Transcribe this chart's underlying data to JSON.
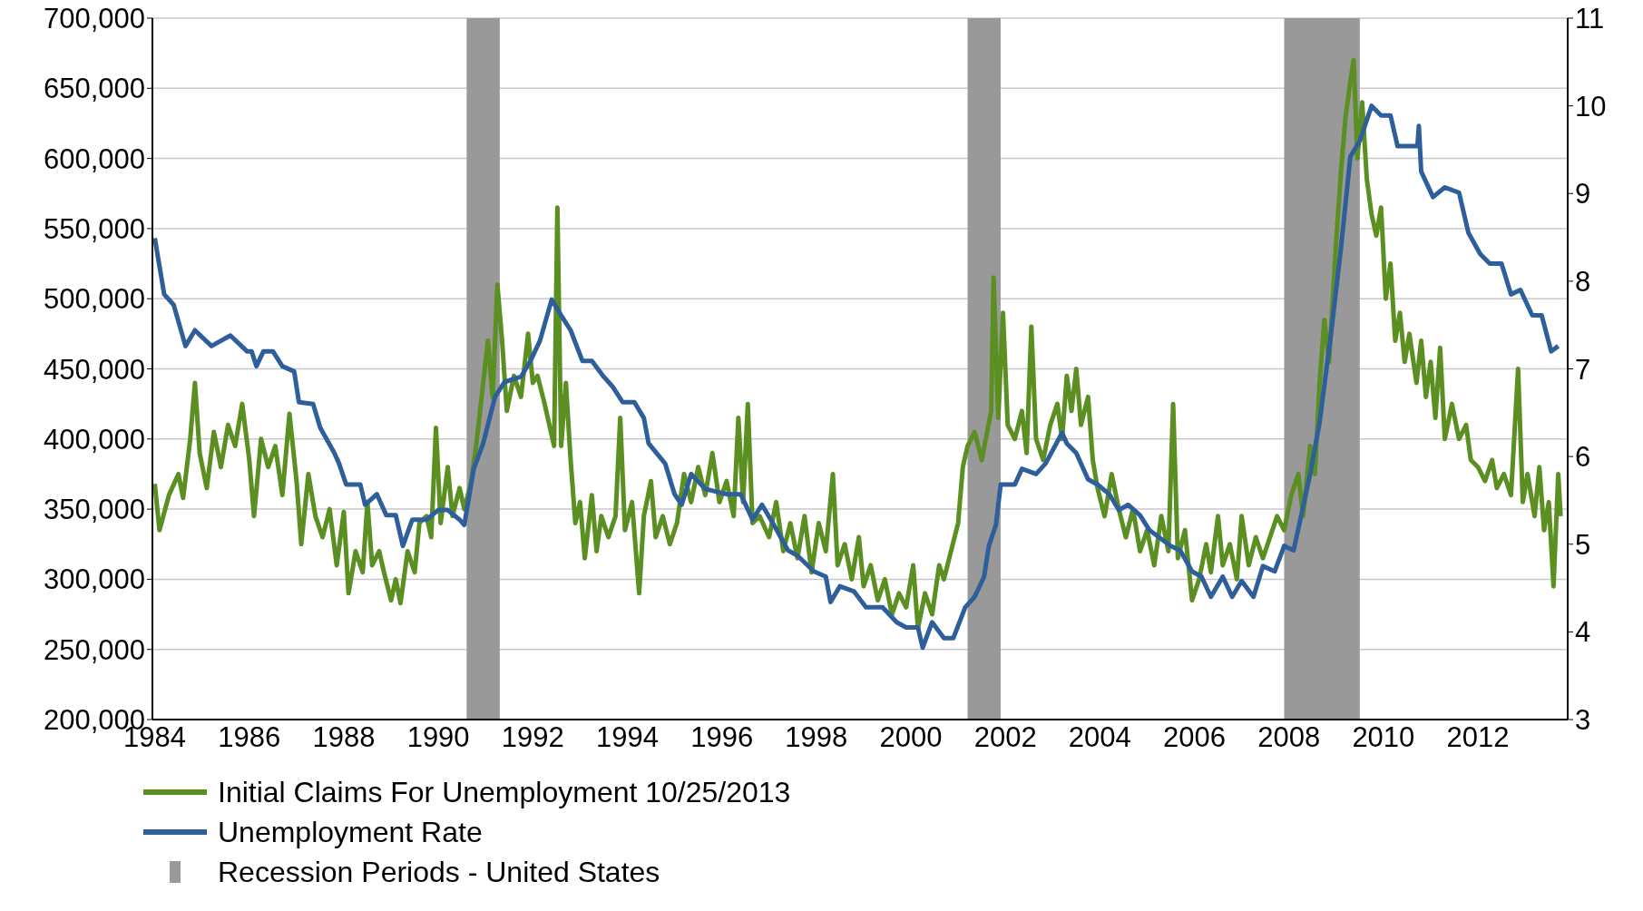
{
  "chart_data": {
    "type": "line",
    "legend": "bottom",
    "grid": "y",
    "marker": "none",
    "line_style": "solid",
    "xlim": [
      1983.95,
      2013.9
    ],
    "xticks": [
      1984,
      1986,
      1988,
      1990,
      1992,
      1994,
      1996,
      1998,
      2000,
      2002,
      2004,
      2006,
      2008,
      2010,
      2012
    ],
    "ylim": [
      200000,
      700000
    ],
    "yticks": [
      {
        "value": 200000,
        "label": "200,000"
      },
      {
        "value": 250000,
        "label": "250,000"
      },
      {
        "value": 300000,
        "label": "300,000"
      },
      {
        "value": 350000,
        "label": "350,000"
      },
      {
        "value": 400000,
        "label": "400,000"
      },
      {
        "value": 450000,
        "label": "450,000"
      },
      {
        "value": 500000,
        "label": "500,000"
      },
      {
        "value": 550000,
        "label": "550,000"
      },
      {
        "value": 600000,
        "label": "600,000"
      },
      {
        "value": 650000,
        "label": "650,000"
      },
      {
        "value": 700000,
        "label": "700,000"
      }
    ],
    "y2lim": [
      3,
      11
    ],
    "y2ticks": [
      3,
      4,
      5,
      6,
      7,
      8,
      9,
      10,
      11
    ],
    "bands": [
      {
        "axis": "x",
        "from": 1990.6,
        "to": 1991.3,
        "label": "Recession Periods - United States",
        "color": "#999999"
      },
      {
        "axis": "x",
        "from": 2001.2,
        "to": 2001.9,
        "color": "#999999"
      },
      {
        "axis": "x",
        "from": 2007.9,
        "to": 2009.5,
        "color": "#999999"
      }
    ],
    "series": [
      {
        "name": "Initial Claims For Unemployment 10/25/2013",
        "color": "#5b8f22",
        "x": [
          1984.0,
          1984.1,
          1984.3,
          1984.5,
          1984.6,
          1984.75,
          1984.85,
          1984.95,
          1985.1,
          1985.25,
          1985.4,
          1985.55,
          1985.7,
          1985.85,
          1986.0,
          1986.1,
          1986.25,
          1986.4,
          1986.55,
          1986.7,
          1986.85,
          1987.0,
          1987.1,
          1987.25,
          1987.4,
          1987.55,
          1987.7,
          1987.85,
          1988.0,
          1988.1,
          1988.25,
          1988.4,
          1988.5,
          1988.6,
          1988.75,
          1988.85,
          1989.0,
          1989.1,
          1989.2,
          1989.35,
          1989.5,
          1989.6,
          1989.75,
          1989.85,
          1989.95,
          1990.05,
          1990.2,
          1990.3,
          1990.45,
          1990.55,
          1990.7,
          1990.8,
          1990.95,
          1991.05,
          1991.15,
          1991.25,
          1991.35,
          1991.45,
          1991.6,
          1991.75,
          1991.9,
          1992.0,
          1992.1,
          1992.25,
          1992.35,
          1992.45,
          1992.52,
          1992.6,
          1992.7,
          1992.8,
          1992.9,
          1993.0,
          1993.1,
          1993.25,
          1993.35,
          1993.45,
          1993.6,
          1993.75,
          1993.85,
          1993.95,
          1994.1,
          1994.25,
          1994.35,
          1994.5,
          1994.6,
          1994.75,
          1994.9,
          1995.05,
          1995.2,
          1995.35,
          1995.5,
          1995.65,
          1995.8,
          1995.95,
          1996.1,
          1996.25,
          1996.35,
          1996.45,
          1996.55,
          1996.65,
          1996.8,
          1997.0,
          1997.15,
          1997.3,
          1997.45,
          1997.6,
          1997.75,
          1997.9,
          1998.05,
          1998.2,
          1998.35,
          1998.45,
          1998.6,
          1998.75,
          1998.9,
          1999.0,
          1999.15,
          1999.3,
          1999.45,
          1999.6,
          1999.75,
          1999.9,
          2000.05,
          2000.15,
          2000.3,
          2000.45,
          2000.6,
          2000.7,
          2000.85,
          2001.0,
          2001.1,
          2001.2,
          2001.35,
          2001.5,
          2001.7,
          2001.75,
          2001.85,
          2001.95,
          2002.05,
          2002.2,
          2002.35,
          2002.45,
          2002.55,
          2002.65,
          2002.8,
          2002.95,
          2003.1,
          2003.2,
          2003.3,
          2003.4,
          2003.5,
          2003.6,
          2003.75,
          2003.85,
          2003.95,
          2004.1,
          2004.25,
          2004.4,
          2004.55,
          2004.7,
          2004.85,
          2005.0,
          2005.15,
          2005.3,
          2005.45,
          2005.55,
          2005.65,
          2005.8,
          2005.95,
          2006.1,
          2006.25,
          2006.35,
          2006.5,
          2006.6,
          2006.75,
          2006.9,
          2007.0,
          2007.15,
          2007.3,
          2007.45,
          2007.6,
          2007.75,
          2007.9,
          2008.05,
          2008.2,
          2008.3,
          2008.45,
          2008.55,
          2008.65,
          2008.75,
          2008.85,
          2009.0,
          2009.1,
          2009.2,
          2009.3,
          2009.37,
          2009.45,
          2009.55,
          2009.65,
          2009.75,
          2009.85,
          2009.95,
          2010.05,
          2010.15,
          2010.25,
          2010.35,
          2010.45,
          2010.55,
          2010.7,
          2010.8,
          2010.9,
          2011.0,
          2011.1,
          2011.2,
          2011.3,
          2011.45,
          2011.6,
          2011.75,
          2011.85,
          2012.0,
          2012.15,
          2012.3,
          2012.4,
          2012.55,
          2012.7,
          2012.85,
          2012.95,
          2013.05,
          2013.2,
          2013.3,
          2013.4,
          2013.5,
          2013.6,
          2013.7,
          2013.75
        ],
        "values": [
          368000,
          335000,
          360000,
          375000,
          358000,
          400000,
          440000,
          390000,
          365000,
          405000,
          380000,
          410000,
          395000,
          425000,
          385000,
          345000,
          400000,
          380000,
          395000,
          360000,
          418000,
          370000,
          325000,
          375000,
          345000,
          330000,
          350000,
          310000,
          348000,
          290000,
          320000,
          305000,
          355000,
          310000,
          320000,
          305000,
          285000,
          300000,
          283000,
          320000,
          305000,
          340000,
          345000,
          330000,
          408000,
          340000,
          380000,
          345000,
          365000,
          350000,
          370000,
          395000,
          440000,
          470000,
          430000,
          510000,
          470000,
          420000,
          445000,
          430000,
          475000,
          440000,
          445000,
          425000,
          410000,
          395000,
          565000,
          395000,
          440000,
          385000,
          340000,
          355000,
          315000,
          360000,
          320000,
          345000,
          330000,
          345000,
          415000,
          335000,
          355000,
          290000,
          345000,
          370000,
          330000,
          345000,
          325000,
          340000,
          375000,
          355000,
          380000,
          360000,
          390000,
          355000,
          370000,
          345000,
          415000,
          355000,
          425000,
          340000,
          345000,
          330000,
          355000,
          320000,
          340000,
          315000,
          345000,
          305000,
          340000,
          320000,
          375000,
          310000,
          325000,
          300000,
          330000,
          295000,
          310000,
          285000,
          300000,
          275000,
          290000,
          280000,
          310000,
          265000,
          290000,
          275000,
          310000,
          300000,
          320000,
          340000,
          380000,
          395000,
          405000,
          385000,
          420000,
          515000,
          415000,
          490000,
          410000,
          400000,
          420000,
          390000,
          480000,
          400000,
          385000,
          410000,
          425000,
          400000,
          445000,
          420000,
          450000,
          410000,
          430000,
          385000,
          365000,
          345000,
          375000,
          350000,
          330000,
          350000,
          320000,
          335000,
          310000,
          345000,
          320000,
          425000,
          315000,
          335000,
          285000,
          300000,
          325000,
          305000,
          345000,
          310000,
          325000,
          300000,
          345000,
          310000,
          330000,
          315000,
          330000,
          345000,
          335000,
          360000,
          375000,
          345000,
          395000,
          375000,
          440000,
          485000,
          455000,
          540000,
          590000,
          630000,
          655000,
          670000,
          600000,
          640000,
          585000,
          560000,
          545000,
          565000,
          500000,
          525000,
          470000,
          490000,
          455000,
          475000,
          440000,
          470000,
          430000,
          455000,
          415000,
          465000,
          400000,
          425000,
          400000,
          410000,
          385000,
          380000,
          370000,
          385000,
          365000,
          375000,
          360000,
          450000,
          355000,
          375000,
          345000,
          380000,
          335000,
          355000,
          295000,
          375000,
          345000
        ]
      },
      {
        "name": "Unemployment Rate",
        "color": "#2e5f9a",
        "axis": "y2",
        "x": [
          1984.0,
          1984.2,
          1984.4,
          1984.65,
          1984.85,
          1985.2,
          1985.6,
          1985.95,
          1986.05,
          1986.15,
          1986.3,
          1986.5,
          1986.7,
          1986.95,
          1987.05,
          1987.35,
          1987.5,
          1987.8,
          1987.9,
          1988.05,
          1988.35,
          1988.45,
          1988.7,
          1988.9,
          1989.1,
          1989.25,
          1989.45,
          1989.75,
          1990.0,
          1990.2,
          1990.45,
          1990.55,
          1990.75,
          1990.95,
          1991.2,
          1991.4,
          1991.75,
          1991.95,
          1992.15,
          1992.4,
          1992.6,
          1992.8,
          1993.05,
          1993.25,
          1993.5,
          1993.7,
          1993.9,
          1994.15,
          1994.35,
          1994.45,
          1994.8,
          1995.0,
          1995.15,
          1995.35,
          1995.65,
          1996.1,
          1996.4,
          1996.65,
          1996.85,
          1997.1,
          1997.4,
          1997.6,
          1997.95,
          1998.2,
          1998.3,
          1998.5,
          1998.8,
          1999.05,
          1999.4,
          1999.7,
          1999.9,
          2000.15,
          2000.25,
          2000.45,
          2000.7,
          2000.9,
          2001.15,
          2001.35,
          2001.55,
          2001.65,
          2001.8,
          2001.9,
          2002.2,
          2002.35,
          2002.65,
          2002.85,
          2003.2,
          2003.3,
          2003.5,
          2003.75,
          2003.95,
          2004.2,
          2004.4,
          2004.6,
          2004.85,
          2005.05,
          2005.5,
          2005.7,
          2005.95,
          2006.15,
          2006.35,
          2006.6,
          2006.8,
          2007.0,
          2007.25,
          2007.45,
          2007.7,
          2007.9,
          2008.1,
          2008.45,
          2008.65,
          2008.9,
          2009.1,
          2009.3,
          2009.5,
          2009.75,
          2009.95,
          2010.15,
          2010.3,
          2010.72,
          2010.75,
          2010.8,
          2011.05,
          2011.3,
          2011.6,
          2011.8,
          2012.05,
          2012.25,
          2012.5,
          2012.7,
          2012.9,
          2013.15,
          2013.35,
          2013.55,
          2013.7
        ],
        "values": [
          8.49,
          7.85,
          7.73,
          7.26,
          7.44,
          7.26,
          7.38,
          7.2,
          7.2,
          7.03,
          7.2,
          7.2,
          7.03,
          6.97,
          6.62,
          6.6,
          6.33,
          6.04,
          5.92,
          5.68,
          5.68,
          5.45,
          5.57,
          5.33,
          5.33,
          4.98,
          5.28,
          5.28,
          5.39,
          5.39,
          5.28,
          5.22,
          5.86,
          6.15,
          6.68,
          6.85,
          6.91,
          7.09,
          7.32,
          7.79,
          7.61,
          7.44,
          7.09,
          7.09,
          6.91,
          6.79,
          6.62,
          6.62,
          6.44,
          6.15,
          5.92,
          5.57,
          5.45,
          5.8,
          5.63,
          5.57,
          5.57,
          5.28,
          5.45,
          5.22,
          4.93,
          4.87,
          4.69,
          4.63,
          4.34,
          4.52,
          4.46,
          4.28,
          4.28,
          4.11,
          4.05,
          4.05,
          3.82,
          4.11,
          3.93,
          3.93,
          4.28,
          4.4,
          4.63,
          4.98,
          5.22,
          5.68,
          5.68,
          5.86,
          5.8,
          5.92,
          6.27,
          6.15,
          6.04,
          5.74,
          5.68,
          5.57,
          5.39,
          5.45,
          5.33,
          5.16,
          4.98,
          4.93,
          4.69,
          4.63,
          4.4,
          4.63,
          4.4,
          4.58,
          4.4,
          4.75,
          4.69,
          4.98,
          4.93,
          5.8,
          6.39,
          7.44,
          8.37,
          9.42,
          9.6,
          10.0,
          9.89,
          9.89,
          9.54,
          9.54,
          9.77,
          9.25,
          8.96,
          9.07,
          9.01,
          8.55,
          8.31,
          8.2,
          8.2,
          7.85,
          7.9,
          7.61,
          7.61,
          7.2,
          7.26
        ]
      }
    ]
  }
}
